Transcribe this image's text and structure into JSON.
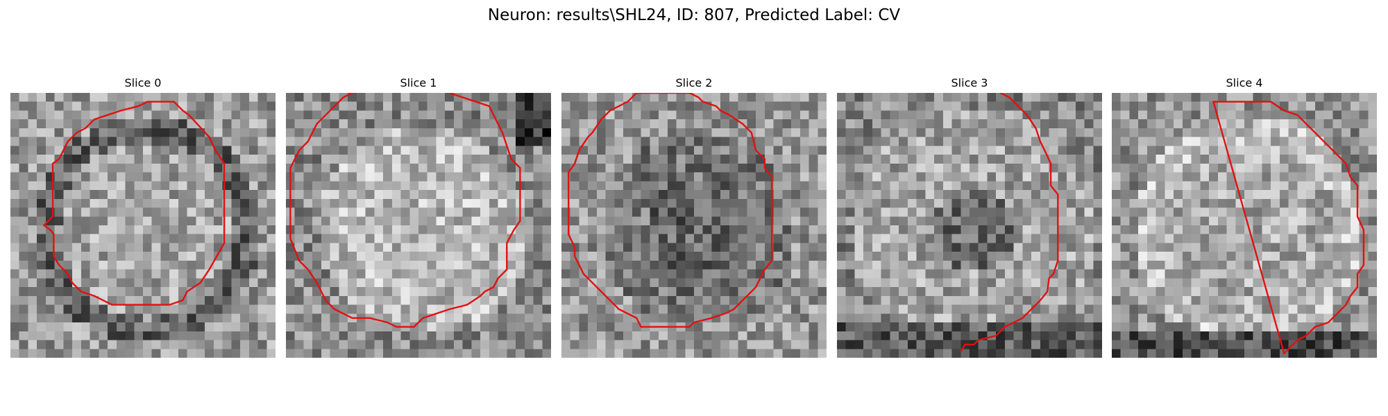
{
  "title": "Neuron: results\\SHL24, ID: 807, Predicted Label: CV",
  "panels": [
    {
      "label": "Slice 0",
      "variant": "dark-ring",
      "seed": 7,
      "contour": [
        [
          15.5,
          1.0
        ],
        [
          18.5,
          1.0
        ],
        [
          19.5,
          2.0
        ],
        [
          20.2,
          2.5
        ],
        [
          22.5,
          5.0
        ],
        [
          23.2,
          6.5
        ],
        [
          24.2,
          8.0
        ],
        [
          24.2,
          17.0
        ],
        [
          22.5,
          20.0
        ],
        [
          21.5,
          21.5
        ],
        [
          20.0,
          22.5
        ],
        [
          19.5,
          23.5
        ],
        [
          18.0,
          24.0
        ],
        [
          11.5,
          24.0
        ],
        [
          10.5,
          23.5
        ],
        [
          9.5,
          23.0
        ],
        [
          8.0,
          22.5
        ],
        [
          7.0,
          21.5
        ],
        [
          6.5,
          20.5
        ],
        [
          5.5,
          19.5
        ],
        [
          4.9,
          18.5
        ],
        [
          4.9,
          16.0
        ],
        [
          4.5,
          15.5
        ],
        [
          3.8,
          15.0
        ],
        [
          4.8,
          14.0
        ],
        [
          4.8,
          8.0
        ],
        [
          5.5,
          7.5
        ],
        [
          6.0,
          6.5
        ],
        [
          6.5,
          5.5
        ],
        [
          7.5,
          4.5
        ],
        [
          8.5,
          4.0
        ],
        [
          9.5,
          3.0
        ],
        [
          11.0,
          2.5
        ],
        [
          12.5,
          2.0
        ],
        [
          14.5,
          1.5
        ]
      ]
    },
    {
      "label": "Slice 1",
      "variant": "bright-blob",
      "seed": 19,
      "contour": [
        [
          8.5,
          -0.9
        ],
        [
          17.5,
          -0.9
        ],
        [
          18.5,
          0.0
        ],
        [
          20.0,
          0.5
        ],
        [
          21.5,
          1.0
        ],
        [
          23.0,
          1.5
        ],
        [
          23.5,
          2.5
        ],
        [
          24.0,
          3.5
        ],
        [
          24.5,
          4.5
        ],
        [
          25.0,
          6.0
        ],
        [
          25.5,
          7.5
        ],
        [
          26.5,
          8.5
        ],
        [
          26.5,
          14.5
        ],
        [
          25.8,
          15.5
        ],
        [
          25.0,
          17.0
        ],
        [
          25.0,
          20.0
        ],
        [
          24.0,
          21.0
        ],
        [
          23.5,
          22.0
        ],
        [
          22.5,
          22.5
        ],
        [
          22.0,
          23.0
        ],
        [
          20.5,
          24.0
        ],
        [
          18.5,
          24.5
        ],
        [
          15.5,
          25.5
        ],
        [
          14.5,
          26.5
        ],
        [
          12.5,
          26.5
        ],
        [
          11.5,
          26.0
        ],
        [
          9.5,
          25.5
        ],
        [
          7.5,
          25.5
        ],
        [
          6.5,
          25.0
        ],
        [
          5.5,
          24.5
        ],
        [
          4.5,
          23.5
        ],
        [
          3.5,
          21.5
        ],
        [
          2.5,
          20.0
        ],
        [
          1.5,
          19.0
        ],
        [
          0.5,
          16.5
        ],
        [
          0.5,
          8.5
        ],
        [
          1.5,
          6.5
        ],
        [
          2.5,
          5.5
        ],
        [
          3.5,
          3.5
        ],
        [
          4.5,
          2.5
        ],
        [
          5.5,
          1.5
        ],
        [
          6.5,
          0.5
        ],
        [
          7.5,
          0.0
        ]
      ]
    },
    {
      "label": "Slice 2",
      "variant": "noisy-mid",
      "seed": 33,
      "contour": [
        [
          8.5,
          0.0
        ],
        [
          14.5,
          0.0
        ],
        [
          15.5,
          0.5
        ],
        [
          16.0,
          1.0
        ],
        [
          17.5,
          1.5
        ],
        [
          18.0,
          2.0
        ],
        [
          19.0,
          2.5
        ],
        [
          20.5,
          3.5
        ],
        [
          21.5,
          4.5
        ],
        [
          22.0,
          6.5
        ],
        [
          23.0,
          7.5
        ],
        [
          23.0,
          8.5
        ],
        [
          23.8,
          9.5
        ],
        [
          23.8,
          19.0
        ],
        [
          23.0,
          20.0
        ],
        [
          22.5,
          21.0
        ],
        [
          22.0,
          22.0
        ],
        [
          21.5,
          22.5
        ],
        [
          20.5,
          23.5
        ],
        [
          19.5,
          24.5
        ],
        [
          18.5,
          25.0
        ],
        [
          17.0,
          25.5
        ],
        [
          15.0,
          26.0
        ],
        [
          14.5,
          26.5
        ],
        [
          9.0,
          26.5
        ],
        [
          8.5,
          25.5
        ],
        [
          7.5,
          25.0
        ],
        [
          6.5,
          24.5
        ],
        [
          5.5,
          23.5
        ],
        [
          4.5,
          22.5
        ],
        [
          3.5,
          21.5
        ],
        [
          2.5,
          20.5
        ],
        [
          2.0,
          19.5
        ],
        [
          1.5,
          18.5
        ],
        [
          1.5,
          17.5
        ],
        [
          0.8,
          16.0
        ],
        [
          0.8,
          9.0
        ],
        [
          1.5,
          8.0
        ],
        [
          2.0,
          6.5
        ],
        [
          3.0,
          5.0
        ],
        [
          3.5,
          4.5
        ],
        [
          4.5,
          3.0
        ],
        [
          5.5,
          2.0
        ],
        [
          6.5,
          1.5
        ],
        [
          7.5,
          1.0
        ]
      ]
    },
    {
      "label": "Slice 3",
      "variant": "dark-center",
      "seed": 47,
      "contour": [
        [
          16.5,
          -2.0
        ],
        [
          17.5,
          -1.0
        ],
        [
          18.5,
          0.0
        ],
        [
          19.5,
          0.5
        ],
        [
          20.5,
          1.5
        ],
        [
          21.5,
          2.5
        ],
        [
          22.5,
          4.0
        ],
        [
          23.0,
          5.5
        ],
        [
          23.5,
          6.5
        ],
        [
          24.2,
          8.0
        ],
        [
          24.2,
          10.5
        ],
        [
          25.0,
          11.5
        ],
        [
          25.0,
          19.0
        ],
        [
          24.5,
          20.5
        ],
        [
          24.0,
          21.0
        ],
        [
          23.8,
          22.5
        ],
        [
          23.0,
          23.5
        ],
        [
          22.0,
          24.5
        ],
        [
          21.0,
          25.5
        ],
        [
          20.0,
          26.0
        ],
        [
          19.0,
          26.5
        ],
        [
          18.0,
          27.5
        ],
        [
          16.0,
          28.0
        ],
        [
          15.5,
          28.5
        ],
        [
          14.5,
          28.5
        ],
        [
          14.0,
          29.3
        ]
      ]
    },
    {
      "label": "Slice 4",
      "variant": "bright-ring",
      "seed": 61,
      "contour": [
        [
          11.5,
          1.0
        ],
        [
          18.0,
          1.0
        ],
        [
          19.5,
          2.0
        ],
        [
          21.0,
          2.5
        ],
        [
          22.5,
          4.0
        ],
        [
          23.5,
          5.0
        ],
        [
          24.5,
          6.0
        ],
        [
          25.5,
          7.0
        ],
        [
          26.5,
          8.0
        ],
        [
          27.0,
          9.5
        ],
        [
          27.8,
          10.5
        ],
        [
          27.8,
          14.0
        ],
        [
          28.5,
          15.5
        ],
        [
          28.5,
          19.5
        ],
        [
          27.8,
          20.5
        ],
        [
          27.8,
          22.0
        ],
        [
          27.0,
          23.0
        ],
        [
          26.5,
          24.0
        ],
        [
          25.5,
          25.0
        ],
        [
          24.5,
          26.0
        ],
        [
          23.0,
          26.5
        ],
        [
          22.0,
          27.5
        ],
        [
          21.0,
          28.0
        ],
        [
          20.0,
          29.0
        ],
        [
          19.5,
          29.5
        ]
      ]
    }
  ]
}
